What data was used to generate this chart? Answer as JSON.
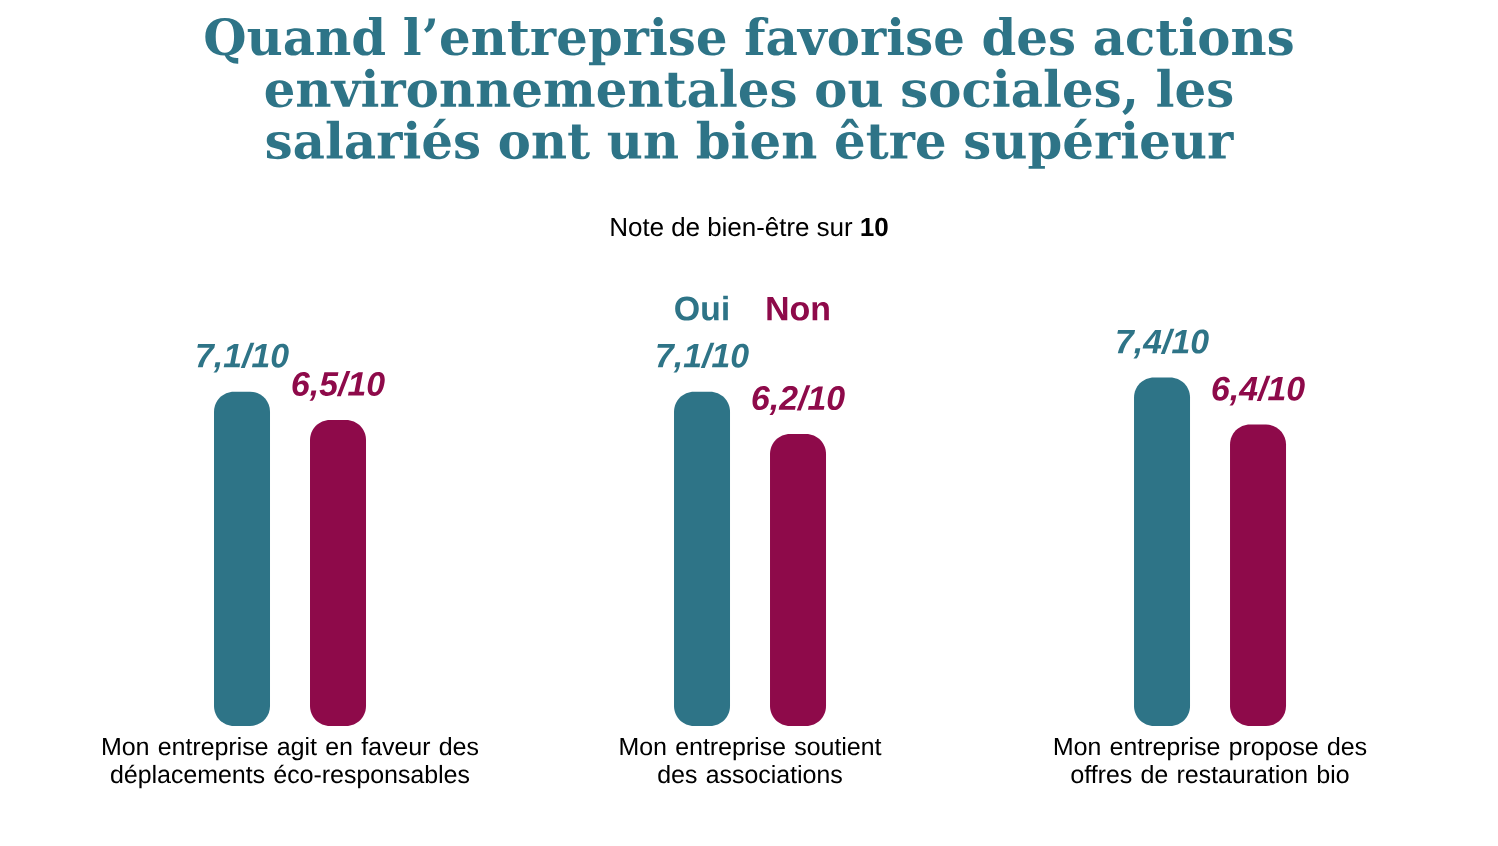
{
  "chart_data": {
    "type": "bar",
    "title": "Quand l’entreprise favorise des actions environnementales ou sociales, les salariés ont un bien être supérieur",
    "subtitle": "Note de bien-être sur **10**",
    "categories": [
      "Mon entreprise agit en faveur des déplacements éco-responsables",
      "Mon entreprise soutient des associations",
      "Mon entreprise propose des offres de restauration bio"
    ],
    "series": [
      {
        "name": "Oui",
        "color": "#2e7487",
        "values": [
          7.1,
          7.1,
          7.4
        ],
        "value_labels": [
          "7,1/10",
          "7,1/10",
          "7,4/10"
        ]
      },
      {
        "name": "Non",
        "color": "#8e0a4a",
        "values": [
          6.5,
          6.2,
          6.4
        ],
        "value_labels": [
          "6,5/10",
          "6,2/10",
          "6,4/10"
        ]
      }
    ]
  }
}
